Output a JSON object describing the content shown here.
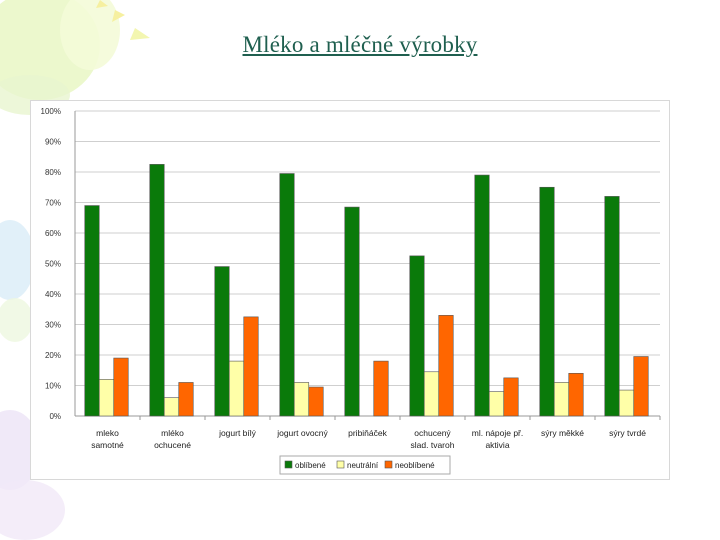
{
  "slide": {
    "title": "Mléko a mléčné výrobky"
  },
  "colors": {
    "oblibene": "#0a7a0a",
    "neutralni": "#ffffa8",
    "neoblibene": "#ff6600",
    "grid": "#cfcfcf",
    "title": "#1f5f4f"
  },
  "chart_data": {
    "type": "bar",
    "title": "",
    "xlabel": "",
    "ylabel": "",
    "ylim": [
      0,
      100
    ],
    "yticks": [
      "0%",
      "10%",
      "20%",
      "30%",
      "40%",
      "50%",
      "60%",
      "70%",
      "80%",
      "90%",
      "100%"
    ],
    "grid": true,
    "legend_position": "bottom",
    "categories": [
      [
        "mleko",
        "samotné"
      ],
      [
        "mléko",
        "ochucené"
      ],
      [
        "jogurt bílý"
      ],
      [
        "jogurt ovocný"
      ],
      [
        "pribiňáček"
      ],
      [
        "ochucený",
        "slad. tvaroh"
      ],
      [
        "ml. nápoje př.",
        "aktivia"
      ],
      [
        "sýry měkké"
      ],
      [
        "sýry tvrdé"
      ]
    ],
    "series": [
      {
        "name": "oblíbené",
        "color": "#0a7a0a",
        "values": [
          69,
          82.5,
          49,
          79.5,
          68.5,
          52.5,
          79,
          75,
          72
        ]
      },
      {
        "name": "neutrální",
        "color": "#ffffa8",
        "values": [
          12,
          6,
          18,
          11,
          0,
          14.5,
          8,
          11,
          8.5
        ]
      },
      {
        "name": "neoblíbené",
        "color": "#ff6600",
        "values": [
          19,
          11,
          32.5,
          9.5,
          18,
          33,
          12.5,
          14,
          19.5
        ]
      }
    ]
  }
}
